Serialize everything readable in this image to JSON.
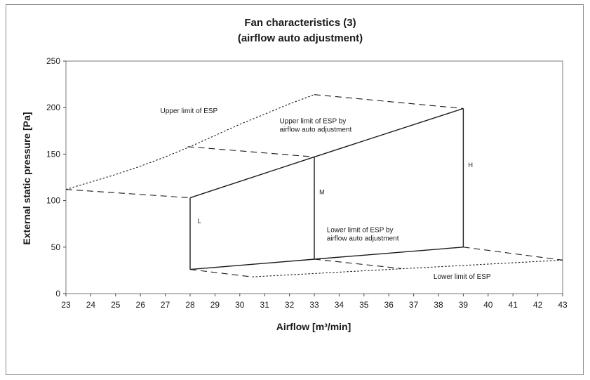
{
  "chart_data": {
    "type": "line",
    "title": "Fan characteristics (3)",
    "subtitle": "(airflow auto adjustment)",
    "xlabel": "Airflow [m³/min]",
    "ylabel": "External static pressure [Pa]",
    "xlim": [
      23,
      43
    ],
    "ylim": [
      0,
      250
    ],
    "xticks": [
      23,
      24,
      25,
      26,
      27,
      28,
      29,
      30,
      31,
      32,
      33,
      34,
      35,
      36,
      37,
      38,
      39,
      40,
      41,
      42,
      43
    ],
    "yticks": [
      0,
      50,
      100,
      150,
      200,
      250
    ],
    "grid": false,
    "series": [
      {
        "style": "dotted",
        "x": [
          23,
          24,
          25,
          26,
          27,
          28,
          29,
          30,
          31,
          32,
          33
        ],
        "y": [
          112,
          120,
          128,
          137,
          147,
          158,
          170,
          182,
          193,
          204,
          214
        ]
      },
      {
        "style": "dashed",
        "x": [
          33,
          39
        ],
        "y": [
          214,
          199
        ]
      },
      {
        "style": "solid",
        "x": [
          28,
          33,
          39
        ],
        "y": [
          103,
          147,
          199
        ]
      },
      {
        "style": "solid",
        "x": [
          28,
          33,
          39
        ],
        "y": [
          26,
          37,
          50
        ]
      },
      {
        "style": "solid",
        "x": [
          28,
          28
        ],
        "y": [
          26,
          103
        ]
      },
      {
        "style": "solid",
        "x": [
          33,
          33
        ],
        "y": [
          37,
          147
        ]
      },
      {
        "style": "solid",
        "x": [
          39,
          39
        ],
        "y": [
          50,
          199
        ]
      },
      {
        "style": "dashed",
        "x": [
          23,
          28
        ],
        "y": [
          112,
          103
        ]
      },
      {
        "style": "dashed",
        "x": [
          27.9,
          33
        ],
        "y": [
          158,
          147
        ]
      },
      {
        "style": "dashed",
        "x": [
          28,
          30.5
        ],
        "y": [
          26,
          18
        ]
      },
      {
        "style": "dotted",
        "x": [
          30.5,
          36,
          43
        ],
        "y": [
          18,
          26,
          36
        ]
      },
      {
        "style": "dashed",
        "x": [
          33,
          36.5
        ],
        "y": [
          37,
          27
        ]
      },
      {
        "style": "dashed",
        "x": [
          39,
          43
        ],
        "y": [
          50,
          36
        ]
      }
    ],
    "annotations": [
      {
        "text": "Upper limit of ESP",
        "x": 26.8,
        "y": 194
      },
      {
        "text": "Upper limit of ESP by",
        "x": 31.6,
        "y": 183
      },
      {
        "text": "airflow auto adjustment",
        "x": 31.6,
        "y": 174
      },
      {
        "text": "Lower limit of ESP by",
        "x": 33.5,
        "y": 66
      },
      {
        "text": "airflow auto adjustment",
        "x": 33.5,
        "y": 57
      },
      {
        "text": "Lower limit of ESP",
        "x": 37.8,
        "y": 16
      },
      {
        "text": "L",
        "x": 28.3,
        "y": 76
      },
      {
        "text": "M",
        "x": 33.2,
        "y": 107
      },
      {
        "text": "H",
        "x": 39.2,
        "y": 136
      }
    ]
  }
}
